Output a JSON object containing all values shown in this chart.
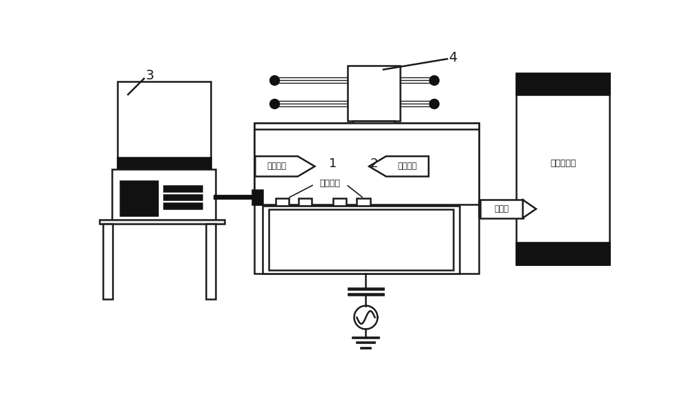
{
  "bg_color": "#ffffff",
  "line_color": "#1a1a1a",
  "lw": 1.8,
  "labels": {
    "label_3": "3",
    "label_4": "4",
    "label_1": "1",
    "label_2": "2",
    "etch_gas_left": "刻㓨气体",
    "etch_gas_right": "刻㓨气体",
    "etch_sample": "刻㓨样品",
    "vacuum_pump": "真空分子泵",
    "vacuum_arrow": "抽真空"
  }
}
